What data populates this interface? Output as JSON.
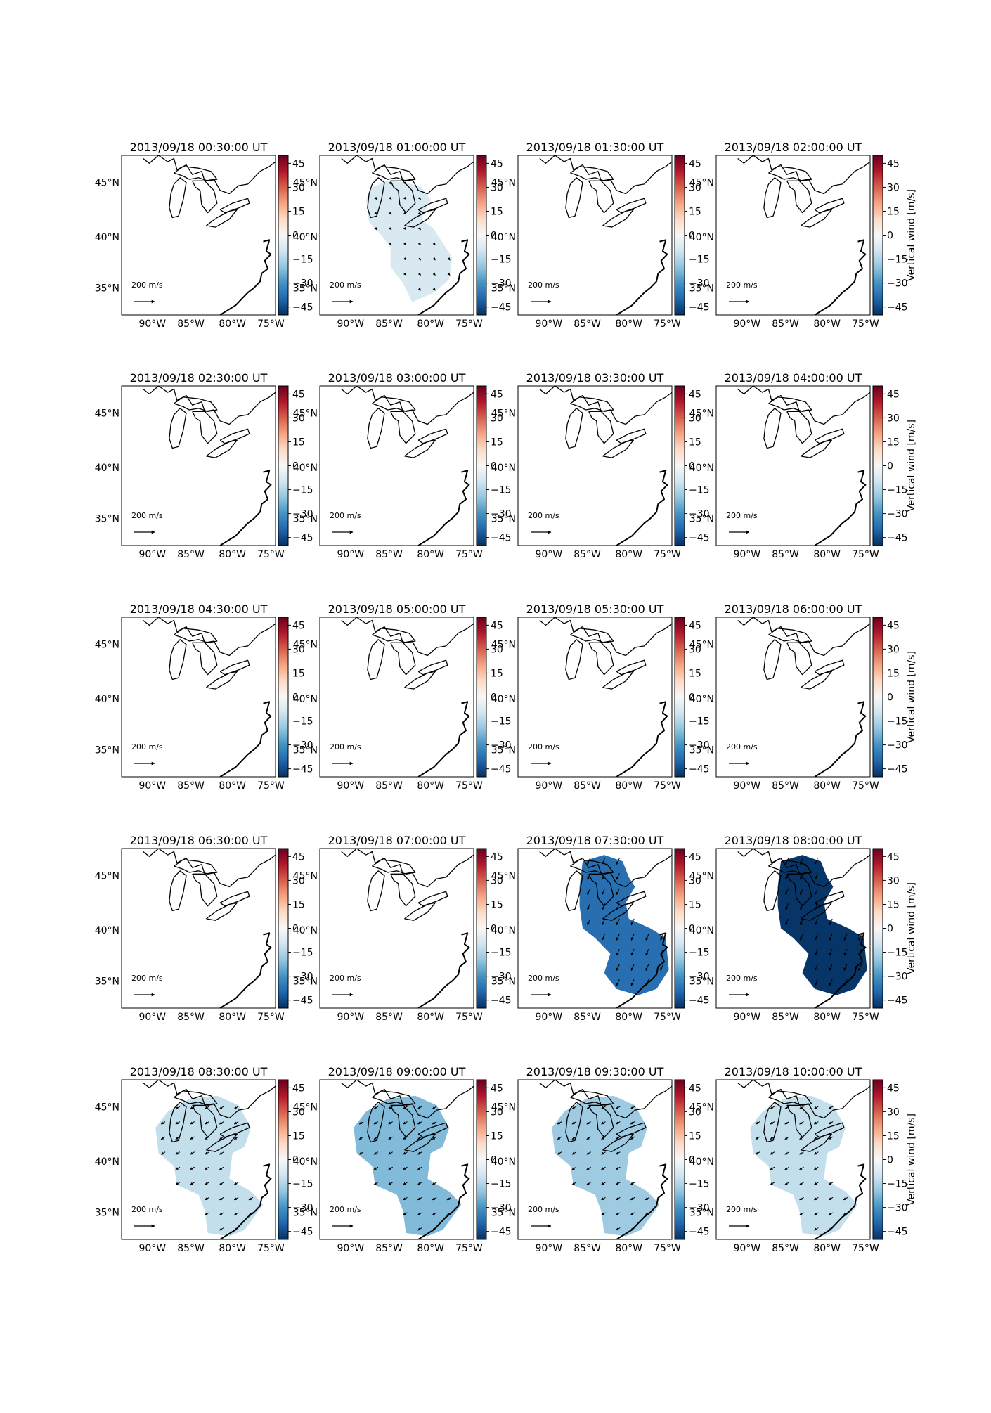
{
  "figure": {
    "colorbar_label": "Vertical wind [m/s]",
    "colorbar_ticks": [
      "45",
      "30",
      "15",
      "0",
      "−15",
      "−30",
      "−45"
    ],
    "lat_labels": [
      "45°N",
      "40°N",
      "35°N"
    ],
    "lon_labels": [
      "90°W",
      "85°W",
      "80°W",
      "75°W"
    ],
    "scale_label": "200 m/s",
    "colormap": "RdBu_r",
    "colormap_stops": [
      "#67001f",
      "#b2182b",
      "#d6604d",
      "#f4a582",
      "#fddbc7",
      "#f7f7f7",
      "#d1e5f0",
      "#92c5de",
      "#4393c3",
      "#2166ac",
      "#053061"
    ],
    "vmin": -50,
    "vmax": 50
  },
  "panels": [
    {
      "title": "2013/09/18 00:30:00 UT",
      "value": null
    },
    {
      "title": "2013/09/18 01:00:00 UT",
      "value": -8
    },
    {
      "title": "2013/09/18 01:30:00 UT",
      "value": null
    },
    {
      "title": "2013/09/18 02:00:00 UT",
      "value": null
    },
    {
      "title": "2013/09/18 02:30:00 UT",
      "value": null
    },
    {
      "title": "2013/09/18 03:00:00 UT",
      "value": null
    },
    {
      "title": "2013/09/18 03:30:00 UT",
      "value": null
    },
    {
      "title": "2013/09/18 04:00:00 UT",
      "value": null
    },
    {
      "title": "2013/09/18 04:30:00 UT",
      "value": null
    },
    {
      "title": "2013/09/18 05:00:00 UT",
      "value": null
    },
    {
      "title": "2013/09/18 05:30:00 UT",
      "value": null
    },
    {
      "title": "2013/09/18 06:00:00 UT",
      "value": null
    },
    {
      "title": "2013/09/18 06:30:00 UT",
      "value": null
    },
    {
      "title": "2013/09/18 07:00:00 UT",
      "value": null
    },
    {
      "title": "2013/09/18 07:30:00 UT",
      "value": -38
    },
    {
      "title": "2013/09/18 08:00:00 UT",
      "value": -49
    },
    {
      "title": "2013/09/18 08:30:00 UT",
      "value": -12
    },
    {
      "title": "2013/09/18 09:00:00 UT",
      "value": -22
    },
    {
      "title": "2013/09/18 09:30:00 UT",
      "value": -18
    },
    {
      "title": "2013/09/18 10:00:00 UT",
      "value": -12
    }
  ]
}
